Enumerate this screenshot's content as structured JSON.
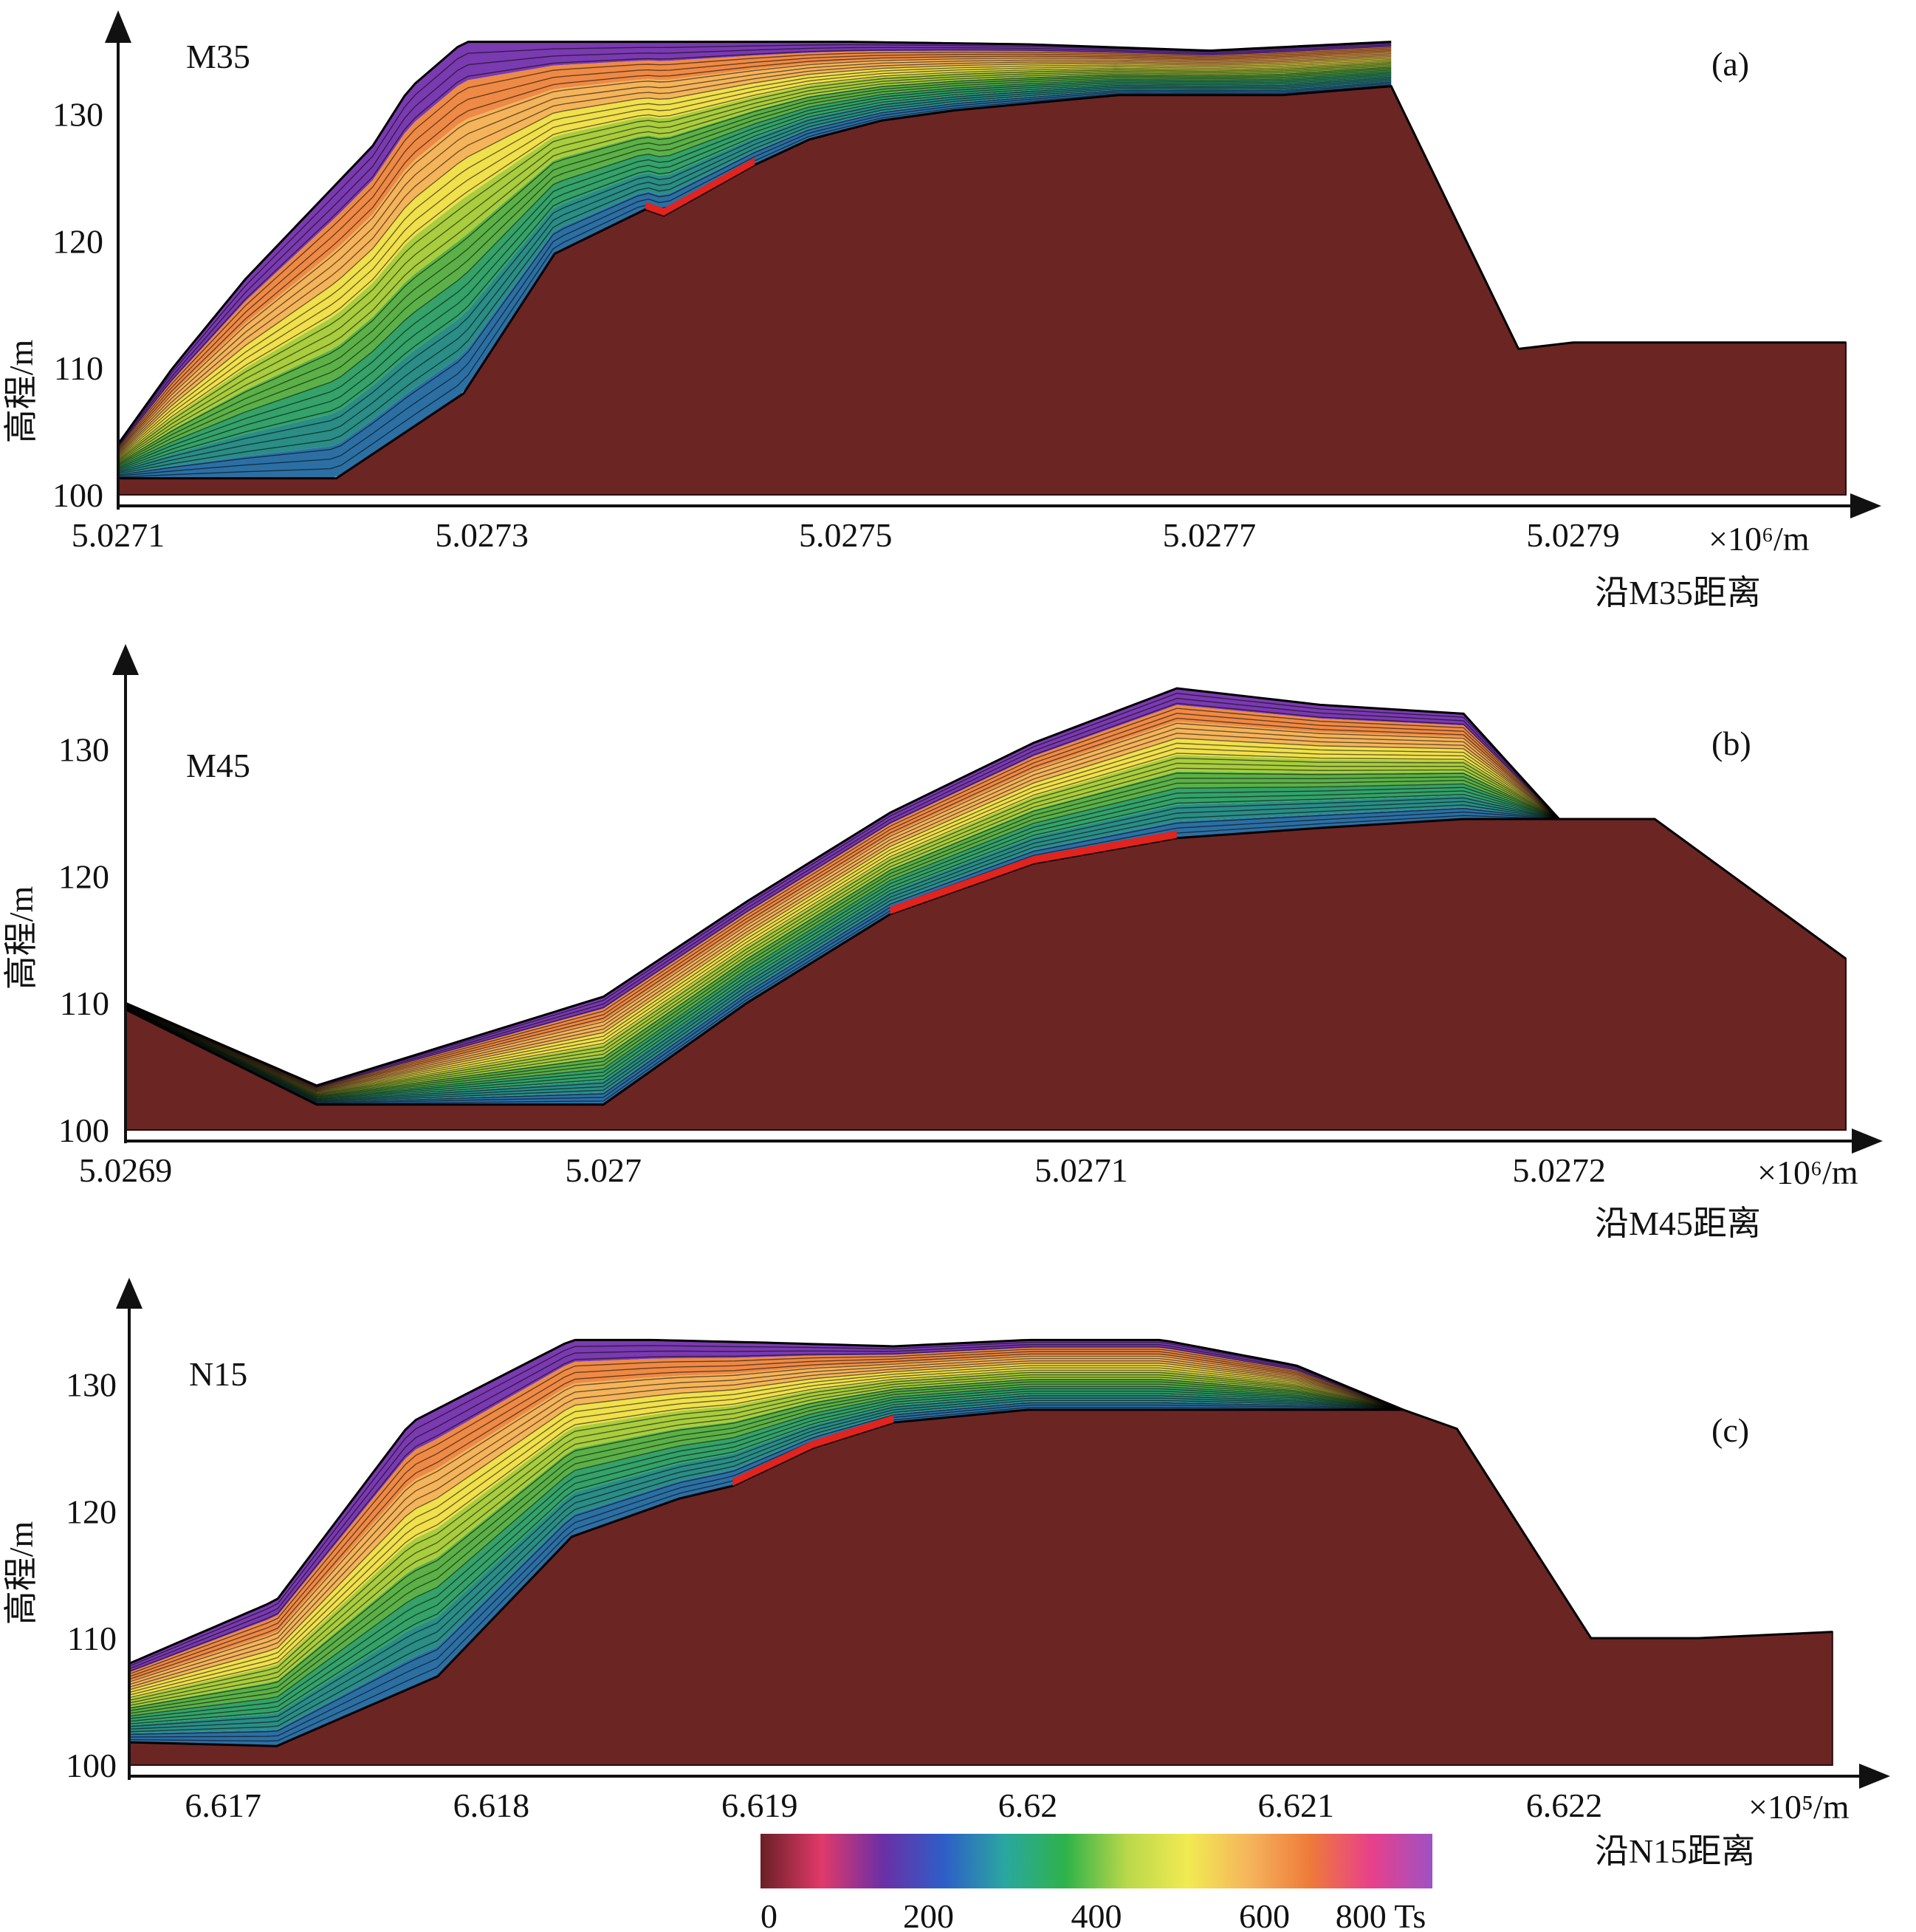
{
  "chart_data": [
    {
      "type": "area",
      "profile": "M35",
      "panel_label": "(a)",
      "ylabel": "高程/m",
      "xlabel": "沿M35距离",
      "x_unit": "×10⁶/m",
      "xlim": [
        5.0271,
        5.02805
      ],
      "ylim": [
        100,
        135.5
      ],
      "x_ticks": [
        "5.0271",
        "5.0273",
        "5.0275",
        "5.0277",
        "5.0279"
      ],
      "y_ticks": [
        "100",
        "110",
        "120",
        "130"
      ],
      "base_ground": {
        "x": [
          5.0271,
          5.02716,
          5.02722,
          5.02729,
          5.02734,
          5.02739,
          5.0274,
          5.02745,
          5.02748,
          5.02752,
          5.02756,
          5.02765,
          5.02774,
          5.0278,
          5.02787,
          5.0279,
          5.02805
        ],
        "y": [
          101.3,
          101.3,
          101.3,
          108,
          119,
          122.5,
          122,
          126,
          128,
          129.5,
          130.3,
          131.5,
          131.5,
          132.2,
          111.5,
          112,
          112
        ]
      },
      "surface": {
        "x": [
          5.0271,
          5.02713,
          5.02717,
          5.02721,
          5.02724,
          5.02726,
          5.02729,
          5.02734,
          5.0274,
          5.0275,
          5.0276,
          5.0277,
          5.0278
        ],
        "y": [
          104,
          110,
          117,
          123,
          127.5,
          132,
          135.7,
          135.7,
          135.7,
          135.7,
          135.5,
          135,
          135.7
        ]
      }
    },
    {
      "type": "area",
      "profile": "M45",
      "panel_label": "(b)",
      "ylabel": "高程/m",
      "xlabel": "沿M45距离",
      "x_unit": "×10⁶/m",
      "xlim": [
        5.0269,
        5.02726
      ],
      "ylim": [
        100,
        135.5
      ],
      "x_ticks": [
        "5.0269",
        "5.027",
        "5.0271",
        "5.0272"
      ],
      "y_ticks": [
        "100",
        "110",
        "120",
        "130"
      ],
      "base_ground": {
        "x": [
          5.0269,
          5.02694,
          5.02697,
          5.027,
          5.02703,
          5.02706,
          5.02709,
          5.02712,
          5.02715,
          5.02718,
          5.0272,
          5.02722,
          5.02726
        ],
        "y": [
          109.5,
          102,
          102,
          102,
          110,
          117,
          121,
          123,
          123.8,
          124.5,
          124.5,
          124.5,
          113.5
        ]
      },
      "surface": {
        "x": [
          5.0269,
          5.02694,
          5.02697,
          5.027,
          5.02703,
          5.02706,
          5.02709,
          5.02712,
          5.02715,
          5.02718,
          5.0272
        ],
        "y": [
          110,
          103.5,
          107,
          110.5,
          118,
          125,
          130.5,
          134.8,
          133.5,
          132.8,
          124.5
        ]
      }
    },
    {
      "type": "area",
      "profile": "N15",
      "panel_label": "(c)",
      "ylabel": "高程/m",
      "xlabel": "沿N15距离",
      "x_unit": "×10⁵/m",
      "xlim": [
        6.61665,
        6.62305
      ],
      "ylim": [
        100,
        135.5
      ],
      "x_ticks": [
        "6.617",
        "6.618",
        "6.619",
        "6.62",
        "6.621",
        "6.622"
      ],
      "y_ticks": [
        "100",
        "110",
        "120",
        "130"
      ],
      "base_ground": {
        "x": [
          6.61665,
          6.6172,
          6.6178,
          6.6183,
          6.6187,
          6.6189,
          6.6192,
          6.6195,
          6.62,
          6.6205,
          6.621,
          6.6214,
          6.6216,
          6.6221,
          6.6225,
          6.623
        ],
        "y": [
          101.8,
          101.5,
          107,
          118,
          121,
          122,
          125,
          127,
          128,
          128,
          128,
          128,
          126.5,
          110,
          110,
          110.5
        ]
      },
      "surface": {
        "x": [
          6.61665,
          6.6172,
          6.6177,
          6.6183,
          6.6186,
          6.619,
          6.6195,
          6.62,
          6.6205,
          6.621,
          6.6214
        ],
        "y": [
          108,
          113,
          127,
          133.5,
          133.5,
          133.3,
          133,
          133.5,
          133.5,
          131.5,
          128
        ]
      }
    }
  ],
  "colorbar": {
    "tick_labels": [
      "0",
      "200",
      "400",
      "600",
      "800 Ts"
    ],
    "colors": [
      "#6a1f24",
      "#e03a6a",
      "#6b2fa6",
      "#2e5ec8",
      "#2aa7a0",
      "#2fb24a",
      "#b9d84a",
      "#f2ea52",
      "#f5b45c",
      "#ee7a3a",
      "#e8408a",
      "#9e52c4"
    ]
  },
  "colors": {
    "ground": "#6b2523",
    "outline": "#000000",
    "red_seam": "#e2231e"
  }
}
